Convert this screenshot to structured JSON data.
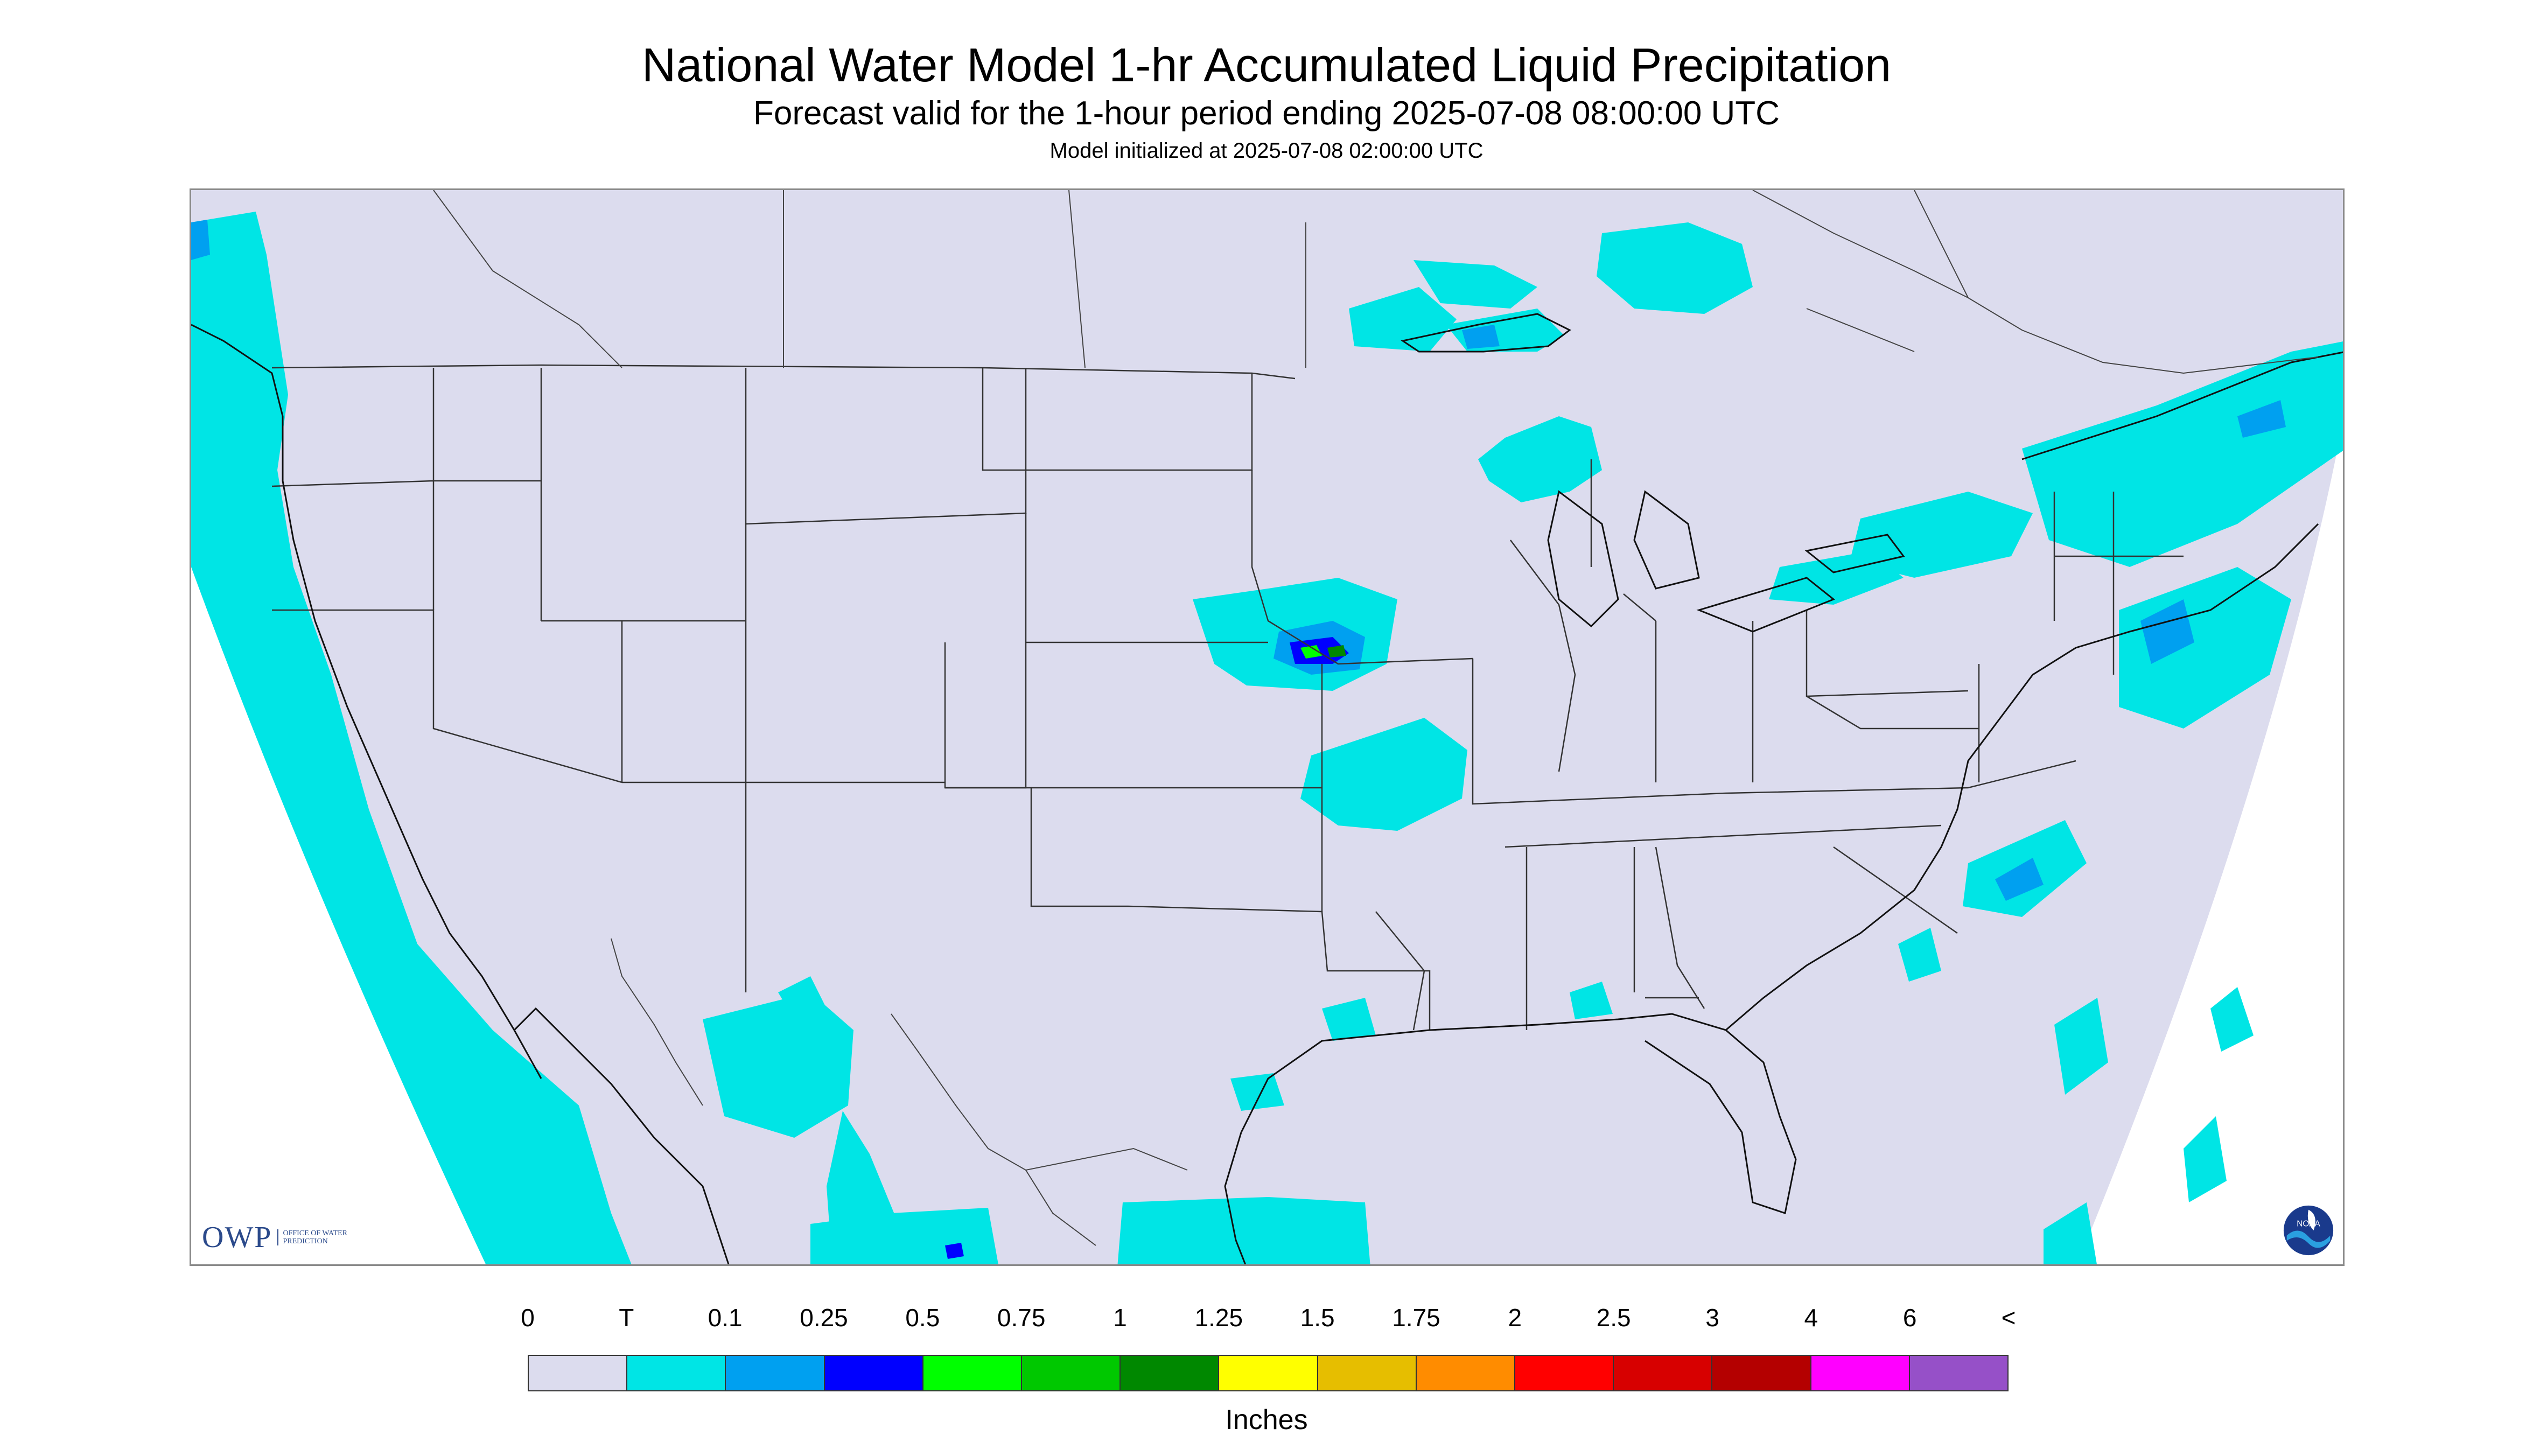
{
  "title": "National Water Model 1-hr Accumulated Liquid Precipitation",
  "subtitle": "Forecast valid for the 1-hour period ending 2025-07-08 08:00:00 UTC",
  "init_line": "Model initialized at 2025-07-08 02:00:00 UTC",
  "logos": {
    "owp": "OWP",
    "owp_sub": "OFFICE OF WATER PREDICTION",
    "noaa": "NOAA"
  },
  "colors": {
    "no_precip": "#dcdcee",
    "trace": "#00e5e5",
    "light_blue": "#00a0f0",
    "blue": "#0000ff",
    "green": "#00ff00",
    "dark_green": "#008800"
  },
  "legend": {
    "labels": [
      "0",
      "T",
      "0.1",
      "0.25",
      "0.5",
      "0.75",
      "1",
      "1.25",
      "1.5",
      "1.75",
      "2",
      "2.5",
      "3",
      "4",
      "6",
      "<"
    ],
    "colors": [
      "#dcdcee",
      "#00e5e5",
      "#00a0f0",
      "#0000ff",
      "#00ff00",
      "#00c800",
      "#008800",
      "#ffff00",
      "#e6be00",
      "#ff8c00",
      "#ff0000",
      "#d70000",
      "#b40000",
      "#ff00ff",
      "#9650c8"
    ],
    "units": "Inches"
  }
}
